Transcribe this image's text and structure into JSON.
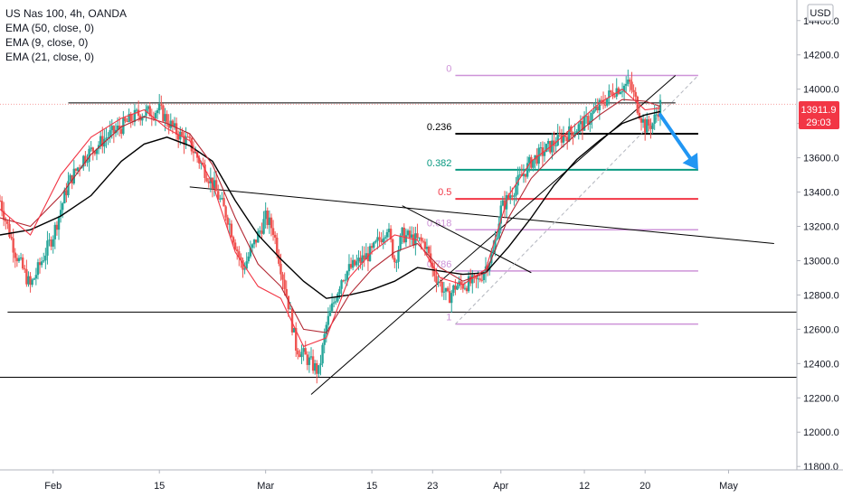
{
  "legend": {
    "symbol": "US Nas 100, 4h, OANDA",
    "ema50": "EMA (50, close, 0)",
    "ema9": "EMA (9, close, 0)",
    "ema21": "EMA (21, close, 0)"
  },
  "currency_label": "USD",
  "price_tag": {
    "value": "13911.9",
    "countdown": "29:03"
  },
  "chart_data": {
    "type": "candlestick",
    "y_ticks": [
      11800,
      12000,
      12200,
      12400,
      12600,
      12800,
      13000,
      13200,
      13400,
      13600,
      13800,
      14000,
      14200,
      14400
    ],
    "y_tick_labels": [
      "11800.0",
      "12000.0",
      "12200.0",
      "12400.0",
      "12600.0",
      "12800.0",
      "13000.0",
      "13200.0",
      "13400.0",
      "13600.0",
      "13800.0",
      "14000.0",
      "14200.0",
      "14400.0"
    ],
    "ylim": [
      11780,
      14520
    ],
    "x_tick_labels": [
      "Feb",
      "15",
      "Mar",
      "15",
      "23",
      "Apr",
      "12",
      "20",
      "May"
    ],
    "x_ticks": [
      "2021-02-01",
      "2021-02-15",
      "2021-03-01",
      "2021-03-15",
      "2021-03-23",
      "2021-04-01",
      "2021-04-12",
      "2021-04-20",
      "2021-05-01"
    ],
    "xlim": [
      "2021-01-25",
      "2021-05-10"
    ],
    "series": [
      {
        "name": "EMA (50, close, 0)",
        "color": "#000000",
        "points": [
          [
            "2021-01-25",
            13150
          ],
          [
            "2021-01-29",
            13180
          ],
          [
            "2021-02-02",
            13260
          ],
          [
            "2021-02-06",
            13380
          ],
          [
            "2021-02-10",
            13580
          ],
          [
            "2021-02-13",
            13680
          ],
          [
            "2021-02-16",
            13720
          ],
          [
            "2021-02-19",
            13670
          ],
          [
            "2021-02-22",
            13580
          ],
          [
            "2021-02-25",
            13350
          ],
          [
            "2021-02-28",
            13150
          ],
          [
            "2021-03-03",
            13010
          ],
          [
            "2021-03-06",
            12880
          ],
          [
            "2021-03-09",
            12780
          ],
          [
            "2021-03-12",
            12800
          ],
          [
            "2021-03-15",
            12830
          ],
          [
            "2021-03-18",
            12880
          ],
          [
            "2021-03-21",
            12960
          ],
          [
            "2021-03-24",
            12940
          ],
          [
            "2021-03-27",
            12920
          ],
          [
            "2021-03-30",
            12930
          ],
          [
            "2021-04-02",
            13080
          ],
          [
            "2021-04-05",
            13250
          ],
          [
            "2021-04-08",
            13440
          ],
          [
            "2021-04-11",
            13590
          ],
          [
            "2021-04-14",
            13700
          ],
          [
            "2021-04-17",
            13800
          ],
          [
            "2021-04-20",
            13850
          ],
          [
            "2021-04-22",
            13870
          ]
        ]
      },
      {
        "name": "EMA (21, close, 0)",
        "color": "#b22833",
        "points": [
          [
            "2021-01-25",
            13250
          ],
          [
            "2021-01-29",
            13200
          ],
          [
            "2021-02-02",
            13380
          ],
          [
            "2021-02-06",
            13620
          ],
          [
            "2021-02-10",
            13780
          ],
          [
            "2021-02-13",
            13840
          ],
          [
            "2021-02-16",
            13800
          ],
          [
            "2021-02-19",
            13740
          ],
          [
            "2021-02-22",
            13560
          ],
          [
            "2021-02-25",
            13250
          ],
          [
            "2021-02-28",
            12980
          ],
          [
            "2021-03-03",
            12850
          ],
          [
            "2021-03-06",
            12600
          ],
          [
            "2021-03-09",
            12580
          ],
          [
            "2021-03-12",
            12800
          ],
          [
            "2021-03-15",
            12950
          ],
          [
            "2021-03-18",
            13050
          ],
          [
            "2021-03-21",
            13100
          ],
          [
            "2021-03-24",
            12960
          ],
          [
            "2021-03-27",
            12880
          ],
          [
            "2021-03-30",
            12930
          ],
          [
            "2021-04-02",
            13250
          ],
          [
            "2021-04-05",
            13480
          ],
          [
            "2021-04-08",
            13620
          ],
          [
            "2021-04-11",
            13740
          ],
          [
            "2021-04-14",
            13850
          ],
          [
            "2021-04-17",
            13940
          ],
          [
            "2021-04-20",
            13930
          ],
          [
            "2021-04-22",
            13900
          ]
        ]
      },
      {
        "name": "EMA (9, close, 0)",
        "color": "#f23645",
        "points": [
          [
            "2021-01-25",
            13300
          ],
          [
            "2021-01-29",
            13150
          ],
          [
            "2021-02-02",
            13500
          ],
          [
            "2021-02-06",
            13720
          ],
          [
            "2021-02-10",
            13830
          ],
          [
            "2021-02-13",
            13880
          ],
          [
            "2021-02-16",
            13770
          ],
          [
            "2021-02-19",
            13700
          ],
          [
            "2021-02-22",
            13450
          ],
          [
            "2021-02-25",
            13050
          ],
          [
            "2021-02-28",
            12850
          ],
          [
            "2021-03-03",
            12780
          ],
          [
            "2021-03-06",
            12500
          ],
          [
            "2021-03-09",
            12550
          ],
          [
            "2021-03-12",
            12900
          ],
          [
            "2021-03-15",
            13050
          ],
          [
            "2021-03-18",
            13150
          ],
          [
            "2021-03-21",
            13120
          ],
          [
            "2021-03-24",
            12900
          ],
          [
            "2021-03-27",
            12860
          ],
          [
            "2021-03-30",
            12950
          ],
          [
            "2021-04-02",
            13380
          ],
          [
            "2021-04-05",
            13580
          ],
          [
            "2021-04-08",
            13680
          ],
          [
            "2021-04-11",
            13800
          ],
          [
            "2021-04-14",
            13920
          ],
          [
            "2021-04-17",
            14000
          ],
          [
            "2021-04-20",
            13880
          ],
          [
            "2021-04-22",
            13890
          ]
        ]
      }
    ],
    "close_path": [
      [
        "2021-01-25",
        13350
      ],
      [
        "2021-01-27",
        13050
      ],
      [
        "2021-01-29",
        12850
      ],
      [
        "2021-02-01",
        13150
      ],
      [
        "2021-02-03",
        13450
      ],
      [
        "2021-02-05",
        13600
      ],
      [
        "2021-02-08",
        13720
      ],
      [
        "2021-02-10",
        13780
      ],
      [
        "2021-02-12",
        13850
      ],
      [
        "2021-02-15",
        13880
      ],
      [
        "2021-02-17",
        13760
      ],
      [
        "2021-02-19",
        13680
      ],
      [
        "2021-02-22",
        13450
      ],
      [
        "2021-02-24",
        13250
      ],
      [
        "2021-02-26",
        12950
      ],
      [
        "2021-03-01",
        13250
      ],
      [
        "2021-03-02",
        13180
      ],
      [
        "2021-03-04",
        12750
      ],
      [
        "2021-03-05",
        12500
      ],
      [
        "2021-03-08",
        12350
      ],
      [
        "2021-03-09",
        12620
      ],
      [
        "2021-03-11",
        12900
      ],
      [
        "2021-03-12",
        12950
      ],
      [
        "2021-03-15",
        13050
      ],
      [
        "2021-03-17",
        13200
      ],
      [
        "2021-03-18",
        13000
      ],
      [
        "2021-03-19",
        13150
      ],
      [
        "2021-03-22",
        13100
      ],
      [
        "2021-03-23",
        12950
      ],
      [
        "2021-03-25",
        12780
      ],
      [
        "2021-03-26",
        12850
      ],
      [
        "2021-03-29",
        12880
      ],
      [
        "2021-03-31",
        13050
      ],
      [
        "2021-04-01",
        13300
      ],
      [
        "2021-04-05",
        13580
      ],
      [
        "2021-04-07",
        13650
      ],
      [
        "2021-04-09",
        13720
      ],
      [
        "2021-04-12",
        13800
      ],
      [
        "2021-04-14",
        13900
      ],
      [
        "2021-04-16",
        14000
      ],
      [
        "2021-04-18",
        14030
      ],
      [
        "2021-04-19",
        13900
      ],
      [
        "2021-04-20",
        13780
      ],
      [
        "2021-04-21",
        13800
      ],
      [
        "2021-04-22",
        13910
      ]
    ],
    "fibonacci": [
      {
        "label": "0",
        "price": 14080,
        "color": "#ce93d8"
      },
      {
        "label": "0.236",
        "price": 13740,
        "color": "#000000"
      },
      {
        "label": "0.382",
        "price": 13530,
        "color": "#089981"
      },
      {
        "label": "0.5",
        "price": 13360,
        "color": "#f23645"
      },
      {
        "label": "0.618",
        "price": 13180,
        "color": "#ce93d8"
      },
      {
        "label": "0.786",
        "price": 12940,
        "color": "#ce93d8"
      },
      {
        "label": "1",
        "price": 12630,
        "color": "#ce93d8"
      }
    ],
    "horizontal_lines": [
      {
        "price": 13920,
        "from": "2021-02-03",
        "to": "2021-04-24",
        "color": "#000000"
      },
      {
        "price": 12700,
        "from": "2021-01-26",
        "to": "2021-05-10",
        "color": "#000000"
      },
      {
        "price": 12320,
        "from": "2021-01-25",
        "to": "2021-05-10",
        "color": "#000000"
      }
    ],
    "trendlines": [
      {
        "from": [
          "2021-02-19",
          13430
        ],
        "to": [
          "2021-05-07",
          13100
        ],
        "color": "#000000",
        "style": "solid"
      },
      {
        "from": [
          "2021-03-19",
          13320
        ],
        "to": [
          "2021-04-05",
          12930
        ],
        "color": "#000000",
        "style": "solid"
      },
      {
        "from": [
          "2021-03-07",
          12220
        ],
        "to": [
          "2021-04-24",
          14080
        ],
        "color": "#000000",
        "style": "solid"
      },
      {
        "from": [
          "2021-03-26",
          12630
        ],
        "to": [
          "2021-04-27",
          14080
        ],
        "color": "#b2b5be",
        "style": "dashed"
      }
    ],
    "projection_arrow": {
      "from": [
        "2021-04-22",
        13850
      ],
      "to": [
        "2021-04-27",
        13530
      ],
      "color": "#2196f3"
    },
    "last_price": 13911.9,
    "last_price_line_color": "#f7a0a0"
  }
}
